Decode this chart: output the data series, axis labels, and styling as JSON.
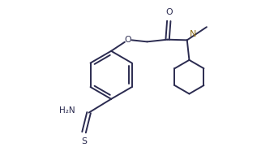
{
  "bg_color": "#ffffff",
  "line_color": "#2b2b50",
  "n_color": "#8B6914",
  "lw": 1.4,
  "fig_width": 3.38,
  "fig_height": 1.92,
  "dpi": 100,
  "xlim": [
    0,
    10
  ],
  "ylim": [
    0,
    5.68
  ]
}
